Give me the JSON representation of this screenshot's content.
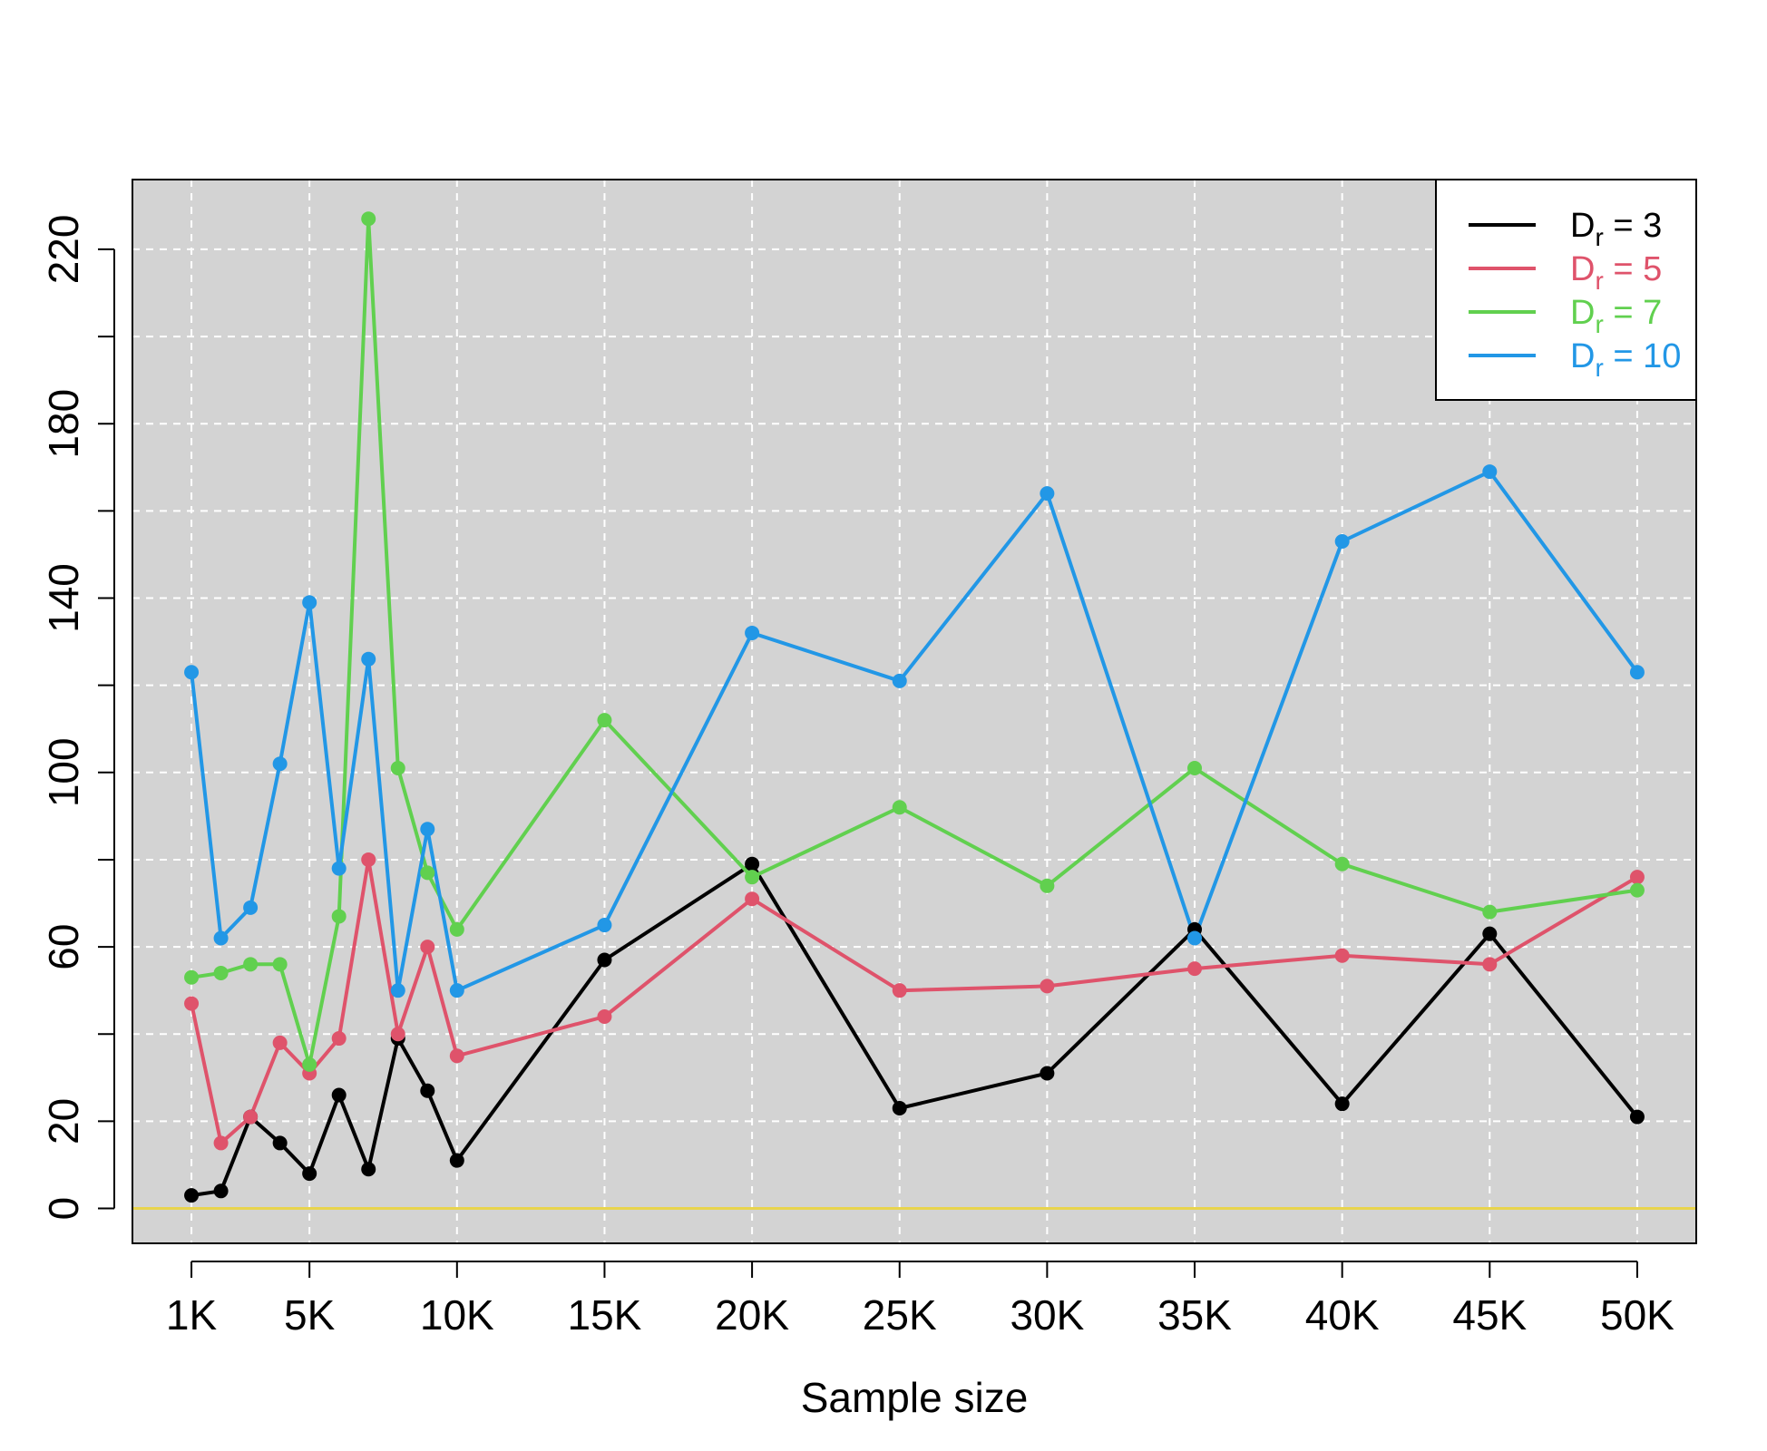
{
  "chart_data": {
    "type": "line",
    "title": "",
    "xlabel": "Sample size",
    "ylabel": "",
    "x": [
      1000,
      2000,
      3000,
      4000,
      5000,
      6000,
      7000,
      8000,
      9000,
      10000,
      15000,
      20000,
      25000,
      30000,
      35000,
      40000,
      45000,
      50000
    ],
    "xlim": [
      -1000,
      52000
    ],
    "ylim": [
      -8,
      236
    ],
    "x_tick_values": [
      1000,
      5000,
      10000,
      15000,
      20000,
      25000,
      30000,
      35000,
      40000,
      45000,
      50000
    ],
    "x_tick_labels": [
      "1K",
      "5K",
      "10K",
      "15K",
      "20K",
      "25K",
      "30K",
      "35K",
      "40K",
      "45K",
      "50K"
    ],
    "y_ticks": [
      0,
      20,
      40,
      60,
      80,
      100,
      120,
      140,
      160,
      180,
      200,
      220
    ],
    "y_tick_labels": [
      "0",
      "20",
      "",
      "60",
      "",
      "100",
      "",
      "140",
      "",
      "180",
      "",
      "220"
    ],
    "grid": true,
    "background_color": "#d3d3d3",
    "grid_color": "#ffffff",
    "reference_line": {
      "y": 0,
      "color": "#e8d44d"
    },
    "legend": {
      "position": "top-right",
      "prefix": "D",
      "subscript": "r"
    },
    "series": [
      {
        "name": "3",
        "color": "#000000",
        "values": [
          3,
          4,
          21,
          15,
          8,
          26,
          9,
          39,
          27,
          11,
          57,
          79,
          23,
          31,
          64,
          24,
          63,
          21
        ]
      },
      {
        "name": "5",
        "color": "#df536b",
        "values": [
          47,
          15,
          21,
          38,
          31,
          39,
          80,
          40,
          60,
          35,
          44,
          71,
          50,
          51,
          55,
          58,
          56,
          76
        ]
      },
      {
        "name": "7",
        "color": "#61d04f",
        "values": [
          53,
          54,
          56,
          56,
          33,
          67,
          227,
          101,
          77,
          64,
          112,
          76,
          92,
          74,
          101,
          79,
          68,
          73
        ]
      },
      {
        "name": "10",
        "color": "#2297e6",
        "values": [
          123,
          62,
          69,
          102,
          139,
          78,
          126,
          50,
          87,
          50,
          65,
          132,
          121,
          164,
          62,
          153,
          169,
          123
        ]
      }
    ]
  }
}
